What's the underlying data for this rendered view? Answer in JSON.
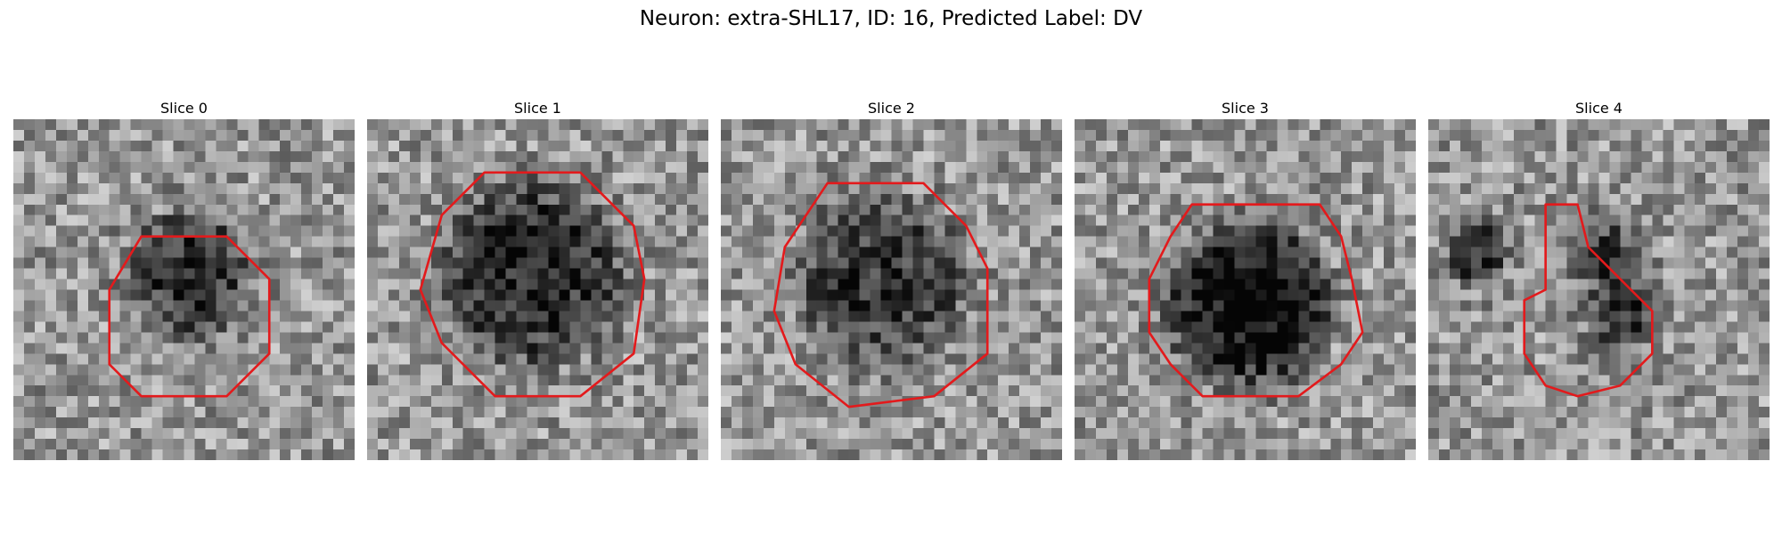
{
  "figure": {
    "title": "Neuron: extra-SHL17, ID: 16, Predicted Label: DV"
  },
  "contour_color": "#e31a1c",
  "panels": [
    {
      "title": "Slice 0",
      "grid": 32,
      "seed": 11,
      "blobs": [
        {
          "cx": 16.5,
          "cy": 14.5,
          "r": 7.0,
          "depth": 0.45
        }
      ],
      "contour": [
        [
          12,
          11
        ],
        [
          20,
          11
        ],
        [
          24,
          15
        ],
        [
          24,
          22
        ],
        [
          20,
          26
        ],
        [
          12,
          26
        ],
        [
          9,
          23
        ],
        [
          9,
          16
        ]
      ]
    },
    {
      "title": "Slice 1",
      "grid": 32,
      "seed": 23,
      "blobs": [
        {
          "cx": 15.5,
          "cy": 14.5,
          "r": 10.0,
          "depth": 0.5
        }
      ],
      "contour": [
        [
          11,
          5
        ],
        [
          20,
          5
        ],
        [
          25,
          10
        ],
        [
          26,
          15
        ],
        [
          25,
          22
        ],
        [
          20,
          26
        ],
        [
          12,
          26
        ],
        [
          7,
          21
        ],
        [
          5,
          16
        ],
        [
          7,
          9
        ]
      ]
    },
    {
      "title": "Slice 2",
      "grid": 32,
      "seed": 37,
      "blobs": [
        {
          "cx": 15.0,
          "cy": 15.0,
          "r": 9.5,
          "depth": 0.42
        }
      ],
      "contour": [
        [
          10,
          6
        ],
        [
          19,
          6
        ],
        [
          23,
          10
        ],
        [
          25,
          14
        ],
        [
          25,
          22
        ],
        [
          20,
          26
        ],
        [
          12,
          27
        ],
        [
          7,
          23
        ],
        [
          5,
          18
        ],
        [
          6,
          12
        ]
      ]
    },
    {
      "title": "Slice 3",
      "grid": 32,
      "seed": 53,
      "blobs": [
        {
          "cx": 16.5,
          "cy": 17.5,
          "r": 9.0,
          "depth": 0.62
        }
      ],
      "contour": [
        [
          11,
          8
        ],
        [
          23,
          8
        ],
        [
          25,
          11
        ],
        [
          26,
          15
        ],
        [
          27,
          20
        ],
        [
          25,
          23
        ],
        [
          21,
          26
        ],
        [
          12,
          26
        ],
        [
          9,
          23
        ],
        [
          7,
          20
        ],
        [
          7,
          15
        ],
        [
          9,
          11
        ]
      ]
    },
    {
      "title": "Slice 4",
      "grid": 32,
      "seed": 71,
      "blobs": [
        {
          "cx": 4.5,
          "cy": 12.5,
          "r": 3.5,
          "depth": 0.45
        },
        {
          "cx": 16.0,
          "cy": 12.0,
          "r": 4.0,
          "depth": 0.35
        },
        {
          "cx": 18.5,
          "cy": 18.0,
          "r": 4.5,
          "depth": 0.4
        }
      ],
      "contour": [
        [
          11,
          8
        ],
        [
          14,
          8
        ],
        [
          15,
          12
        ],
        [
          17,
          14
        ],
        [
          19,
          16
        ],
        [
          21,
          18
        ],
        [
          21,
          22
        ],
        [
          18,
          25
        ],
        [
          14,
          26
        ],
        [
          11,
          25
        ],
        [
          9,
          22
        ],
        [
          9,
          17
        ],
        [
          11,
          16
        ]
      ]
    }
  ]
}
